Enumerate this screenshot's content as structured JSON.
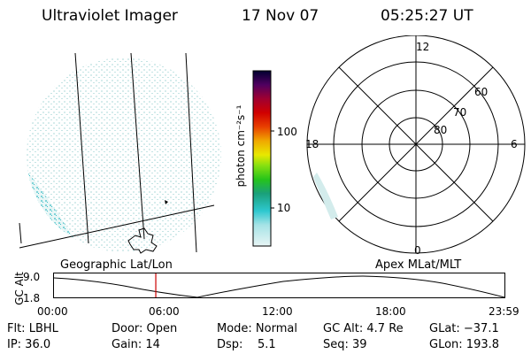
{
  "header": {
    "instrument": "Ultraviolet Imager",
    "date": "17 Nov 07",
    "time": "05:25:27 UT"
  },
  "colorbar": {
    "unit_label": "photon cm⁻²s⁻¹",
    "ticks": [
      "100",
      "10"
    ]
  },
  "polar_plot": {
    "mlt_labels": [
      "12",
      "18",
      "6",
      "0"
    ],
    "lat_labels": [
      "60",
      "70",
      "80"
    ]
  },
  "panel_labels": {
    "left": "Geographic Lat/Lon",
    "right": "Apex MLat/MLT"
  },
  "timeline": {
    "ylabel": "GC Alt",
    "yticks": [
      "9.0",
      "1.8"
    ],
    "xticks": [
      "00:00",
      "06:00",
      "12:00",
      "18:00",
      "23:59"
    ],
    "marker_fraction": 0.226,
    "marker_color": "#cc0000"
  },
  "status": {
    "filter": "Flt: LBHL",
    "ip": "IP: 36.0",
    "door": "Door: Open",
    "gain": "Gain: 14",
    "mode": "Mode: Normal",
    "dsp": "Dsp:    5.1",
    "gc_alt": "GC Alt: 4.7 Re",
    "seq": "Seq: 39",
    "glat": "GLat: −37.1",
    "glon": "GLon: 193.8"
  }
}
